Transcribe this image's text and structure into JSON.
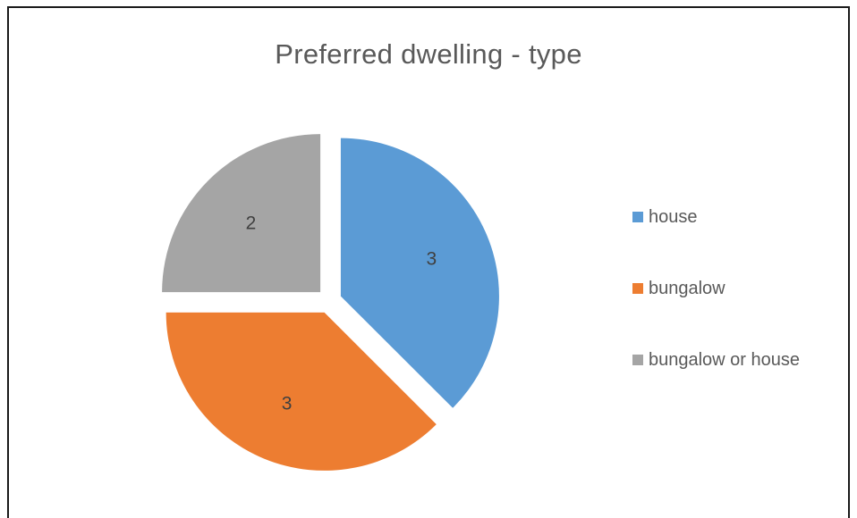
{
  "chart_data": {
    "type": "pie",
    "title": "Preferred dwelling - type",
    "categories": [
      "house",
      "bungalow",
      "bungalow or house"
    ],
    "values": [
      3,
      3,
      2
    ],
    "colors": [
      "#5B9BD5",
      "#ED7D31",
      "#A5A5A5"
    ],
    "data_labels": [
      "3",
      "3",
      "2"
    ],
    "exploded": true,
    "legend_position": "right"
  }
}
